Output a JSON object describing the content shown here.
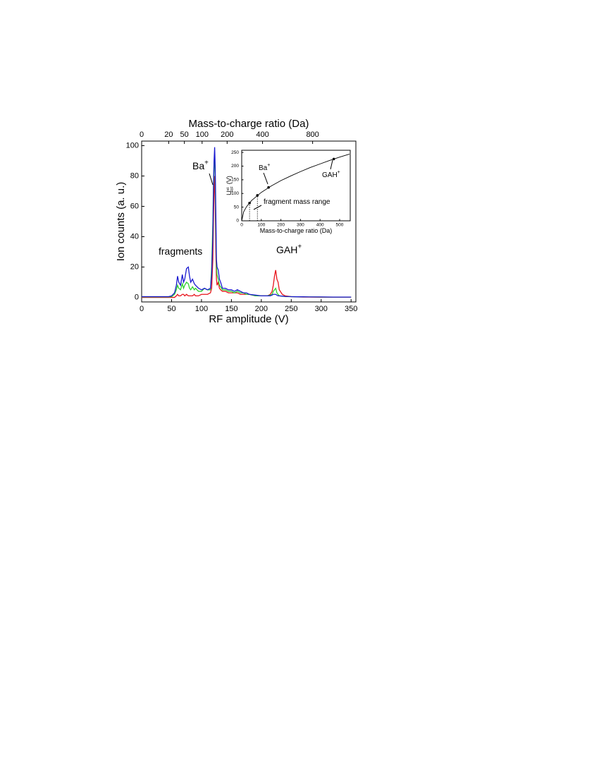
{
  "chart_data": [
    {
      "type": "line",
      "xlabel": "RF amplitude (V)",
      "ylabel": "Ion counts (a. u.)",
      "x2label": "Mass-to-charge ratio (Da)",
      "xlim": [
        0,
        358
      ],
      "ylim": [
        -3,
        103
      ],
      "xticks": [
        0,
        50,
        100,
        150,
        200,
        250,
        300,
        350
      ],
      "yticks": [
        0,
        20,
        40,
        60,
        80,
        100
      ],
      "x2lim": [
        0,
        1256
      ],
      "x2scale": "sqrt",
      "x2ticks": [
        0,
        20,
        50,
        100,
        200,
        400,
        800
      ],
      "annotations": [
        {
          "text": "Ba",
          "sup": "+"
        },
        {
          "text": "fragments"
        },
        {
          "text": "GAH",
          "sup": "+"
        }
      ],
      "x": [
        0,
        10,
        20,
        30,
        40,
        45,
        50,
        55,
        58,
        60,
        62,
        65,
        68,
        70,
        72,
        75,
        78,
        80,
        82,
        85,
        88,
        90,
        95,
        100,
        105,
        110,
        115,
        117,
        119,
        120,
        121,
        122,
        123,
        124,
        125,
        126,
        128,
        130,
        132,
        135,
        140,
        145,
        150,
        155,
        160,
        165,
        170,
        175,
        180,
        190,
        200,
        210,
        215,
        218,
        220,
        222,
        224,
        226,
        228,
        230,
        235,
        240,
        250,
        260,
        270,
        280,
        300,
        320,
        350
      ],
      "series": [
        {
          "color": "#e8141c",
          "values": [
            0,
            0,
            0,
            0,
            0,
            0,
            0,
            0,
            1,
            2,
            1,
            1,
            2,
            2,
            1,
            2,
            1,
            1,
            1,
            1,
            2,
            1,
            1,
            2,
            2,
            2,
            3,
            6,
            25,
            50,
            70,
            80,
            60,
            30,
            12,
            8,
            10,
            6,
            5,
            4,
            4,
            3,
            3,
            3,
            3,
            2,
            2,
            2,
            2,
            1,
            1,
            1,
            2,
            4,
            8,
            14,
            18,
            12,
            10,
            5,
            2,
            1,
            0.5,
            0.3,
            0.2,
            0.2,
            0.1,
            0.1,
            0.1
          ]
        },
        {
          "color": "#2ed32e",
          "values": [
            0.3,
            0.3,
            0.3,
            0.3,
            0.3,
            0.3,
            0.5,
            2,
            5,
            8,
            6,
            5,
            9,
            6,
            8,
            10,
            9,
            6,
            5,
            7,
            5,
            6,
            4,
            4,
            6,
            5,
            5,
            20,
            50,
            75,
            88,
            93,
            75,
            45,
            20,
            15,
            12,
            8,
            7,
            5,
            5,
            4,
            4,
            3,
            4,
            3,
            3,
            2,
            2,
            1,
            1,
            1,
            1.5,
            2,
            4,
            5,
            6,
            3,
            2,
            1,
            0.8,
            0.5,
            0.5,
            0.4,
            0.3,
            0.3,
            0.2,
            0.2,
            0.2
          ]
        },
        {
          "color": "#1a1ad0",
          "values": [
            0.5,
            0.5,
            0.5,
            0.5,
            0.5,
            0.5,
            1,
            3,
            8,
            14,
            10,
            8,
            15,
            10,
            12,
            19,
            20,
            14,
            10,
            12,
            9,
            8,
            6,
            5,
            6,
            5,
            6,
            15,
            40,
            70,
            90,
            99,
            85,
            55,
            25,
            20,
            18,
            12,
            10,
            6,
            6,
            5,
            5,
            4,
            5,
            4,
            3,
            3,
            2,
            1.5,
            1,
            1,
            1,
            1.5,
            2,
            2,
            2,
            1.5,
            1,
            1,
            0.8,
            0.6,
            0.5,
            0.4,
            0.4,
            0.3,
            0.3,
            0.2,
            0.2
          ]
        }
      ]
    },
    {
      "type": "line",
      "xlabel": "Mass-to-charge ratio (Da)",
      "ylabel": {
        "text": "U",
        "sup": "st",
        "sub": "RF",
        "tail": "(V)"
      },
      "xlim": [
        0,
        554
      ],
      "ylim": [
        0,
        258
      ],
      "xticks": [
        0,
        100,
        200,
        300,
        400,
        500
      ],
      "yticks": [
        0,
        50,
        100,
        150,
        200,
        250
      ],
      "annotations": [
        {
          "text": "Ba",
          "sup": "+"
        },
        {
          "text": "GAH",
          "sup": "+"
        },
        {
          "text": "fragment mass range"
        }
      ],
      "x": [
        0,
        10,
        25,
        50,
        100,
        150,
        200,
        250,
        300,
        350,
        400,
        450,
        500,
        550
      ],
      "series": [
        {
          "color": "#000000",
          "values": [
            0,
            33,
            52,
            74,
            104,
            127,
            147,
            164,
            180,
            195,
            208,
            221,
            233,
            244
          ]
        }
      ],
      "markers": {
        "color": "#000000",
        "x": [
          40,
          80,
          137,
          470
        ],
        "y": [
          65,
          93,
          122,
          226
        ]
      },
      "dashed": [
        0,
        1
      ]
    }
  ]
}
